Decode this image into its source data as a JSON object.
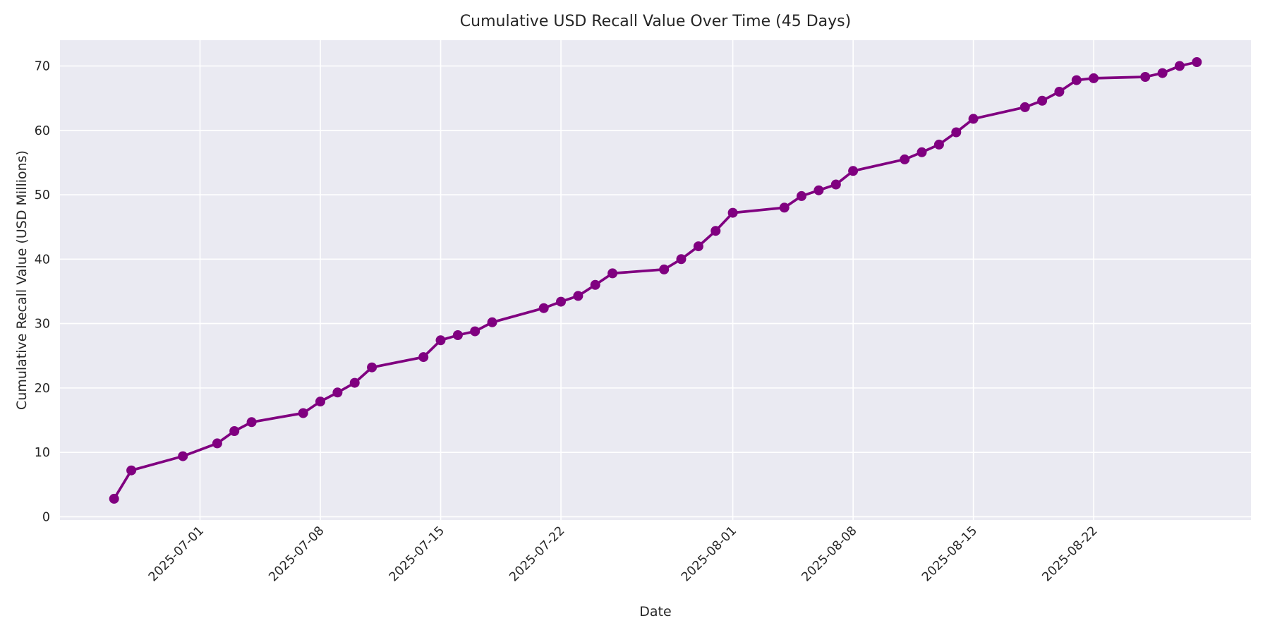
{
  "chart_data": {
    "type": "line",
    "title": "Cumulative USD Recall Value Over Time (45 Days)",
    "xlabel": "Date",
    "ylabel": "Cumulative Recall Value (USD Millions)",
    "x": [
      "2025-06-26",
      "2025-06-27",
      "2025-06-30",
      "2025-07-02",
      "2025-07-03",
      "2025-07-04",
      "2025-07-07",
      "2025-07-08",
      "2025-07-09",
      "2025-07-10",
      "2025-07-11",
      "2025-07-14",
      "2025-07-15",
      "2025-07-16",
      "2025-07-17",
      "2025-07-18",
      "2025-07-21",
      "2025-07-22",
      "2025-07-23",
      "2025-07-24",
      "2025-07-25",
      "2025-07-28",
      "2025-07-29",
      "2025-07-30",
      "2025-07-31",
      "2025-08-01",
      "2025-08-04",
      "2025-08-05",
      "2025-08-06",
      "2025-08-07",
      "2025-08-08",
      "2025-08-11",
      "2025-08-12",
      "2025-08-13",
      "2025-08-14",
      "2025-08-15",
      "2025-08-18",
      "2025-08-19",
      "2025-08-20",
      "2025-08-21",
      "2025-08-22",
      "2025-08-25",
      "2025-08-26",
      "2025-08-27",
      "2025-08-28"
    ],
    "series": [
      {
        "name": "Cumulative Recall Value",
        "color": "#800080",
        "values": [
          2.8,
          7.2,
          9.4,
          11.4,
          13.3,
          14.7,
          16.1,
          17.9,
          19.3,
          20.8,
          23.2,
          24.8,
          27.4,
          28.2,
          28.8,
          30.2,
          32.4,
          33.4,
          34.3,
          36.0,
          37.8,
          38.4,
          40.0,
          42.0,
          44.4,
          47.2,
          48.0,
          49.8,
          50.7,
          51.6,
          53.7,
          55.5,
          56.6,
          57.8,
          59.7,
          61.8,
          63.6,
          64.6,
          66.0,
          67.8,
          68.1,
          68.3,
          68.9,
          70.0,
          70.6
        ]
      }
    ],
    "x_ticks": [
      "2025-07-01",
      "2025-07-08",
      "2025-07-15",
      "2025-07-22",
      "2025-08-01",
      "2025-08-08",
      "2025-08-15",
      "2025-08-22"
    ],
    "y_ticks": [
      0,
      10,
      20,
      30,
      40,
      50,
      60,
      70
    ],
    "ylim": [
      -0.5,
      74.0
    ],
    "x_margin_frac": 0.05,
    "grid": true,
    "legend_position": "none",
    "plot_bg_color": "#EAEAF2",
    "grid_color": "#FFFFFF",
    "text_color": "#262626",
    "marker": "circle"
  }
}
